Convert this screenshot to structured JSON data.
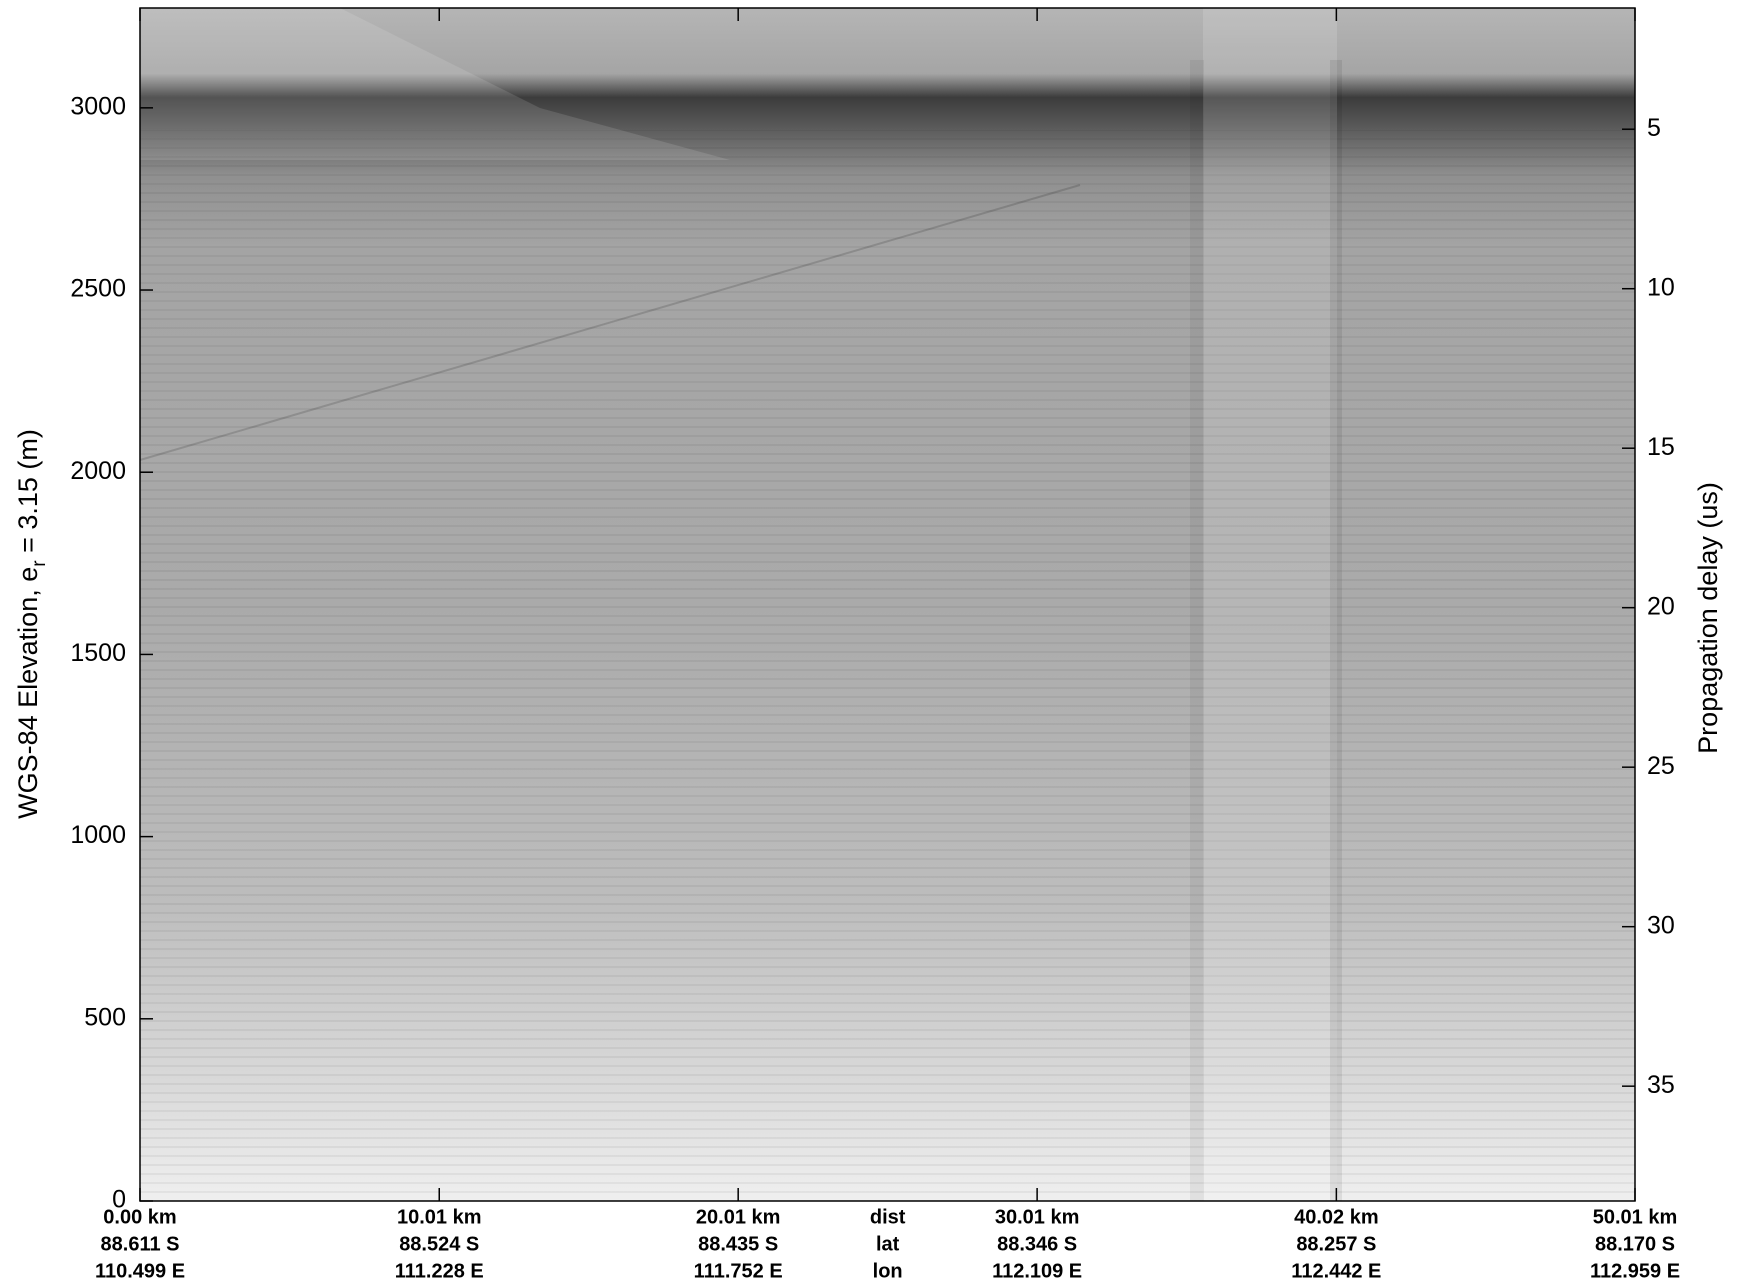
{
  "chart_data": {
    "type": "radargram",
    "y_label": "WGS-84 Elevation, e",
    "y_label_sub": "r",
    "y_label_end": " = 3.15 (m)",
    "y2_label": "Propagation delay (us)",
    "ylim": [
      0,
      3274
    ],
    "yticks": [
      0,
      500,
      1000,
      1500,
      2000,
      2500,
      3000
    ],
    "y2lim": [
      38.6,
      1.2
    ],
    "y2ticks": [
      5,
      10,
      15,
      20,
      25,
      30,
      35
    ],
    "xlim": [
      0,
      50.01
    ],
    "xticks": [
      {
        "value": 0,
        "label": "0.00 km"
      },
      {
        "value": 10.01,
        "label": "10.01 km"
      },
      {
        "value": 20.01,
        "label": "20.01 km"
      },
      {
        "value": 30.01,
        "label": "30.01 km"
      },
      {
        "value": 40.02,
        "label": "40.02 km"
      },
      {
        "value": 50.01,
        "label": "50.01 km"
      }
    ],
    "lat_labels": [
      "88.611 S",
      "88.524 S",
      "88.435 S",
      "88.346 S",
      "88.257 S",
      "88.170 S"
    ],
    "lon_labels": [
      "110.499 E",
      "111.228 E",
      "111.752 E",
      "112.109 E",
      "112.442 E",
      "112.959 E"
    ],
    "row_labels": [
      "dist",
      "lat",
      "lon"
    ]
  }
}
